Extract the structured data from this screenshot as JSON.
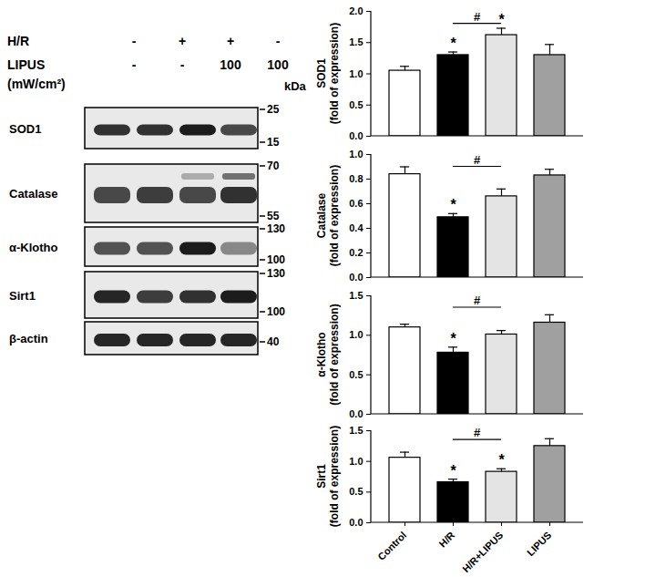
{
  "blot": {
    "conditions": [
      {
        "label": [
          "H/R"
        ],
        "values": [
          "-",
          "+",
          "+",
          "-"
        ]
      },
      {
        "label": [
          "LIPUS",
          "(mW/cm²)"
        ],
        "values": [
          "-",
          "-",
          "100",
          "100"
        ]
      }
    ],
    "marker_unit": "kDa",
    "rows": [
      {
        "label": "SOD1",
        "markers": [
          25,
          15
        ]
      },
      {
        "label": "Catalase",
        "markers": [
          70,
          55
        ]
      },
      {
        "label": "α-Klotho",
        "markers": [
          130,
          100
        ]
      },
      {
        "label": "Sirt1",
        "markers": [
          130,
          100
        ]
      },
      {
        "label": "β-actin",
        "markers": [
          40
        ]
      }
    ]
  },
  "chart_data": [
    {
      "type": "bar",
      "ylabel": [
        "SOD1",
        "(fold of expression)"
      ],
      "categories": [
        "Control",
        "H/R",
        "H/R+LIPUS",
        "LIPUS"
      ],
      "values": [
        1.05,
        1.3,
        1.62,
        1.3
      ],
      "errors": [
        0.07,
        0.05,
        0.11,
        0.17
      ],
      "significance": [
        null,
        "*",
        "*",
        null
      ],
      "comparison": {
        "from": "H/R",
        "to": "H/R+LIPUS",
        "label": "#"
      },
      "colors": [
        "#ffffff",
        "#000000",
        "#e4e4e4",
        "#a0a0a0"
      ],
      "ylim": [
        0,
        2.0
      ],
      "yticks": [
        {
          "value": 0,
          "label": "0.0"
        },
        {
          "value": 0.5,
          "label": "0.5"
        },
        {
          "value": 1,
          "label": "1.0"
        },
        {
          "value": 1.5,
          "label": "1.5"
        },
        {
          "value": 2,
          "label": "2.0"
        }
      ],
      "tick_labels": "y"
    },
    {
      "type": "bar",
      "ylabel": [
        "Catalase",
        "(fold of expression)"
      ],
      "categories": [
        "Control",
        "H/R",
        "H/R+LIPUS",
        "LIPUS"
      ],
      "values": [
        0.84,
        0.49,
        0.66,
        0.83
      ],
      "errors": [
        0.06,
        0.03,
        0.06,
        0.05
      ],
      "significance": [
        null,
        "*",
        null,
        null
      ],
      "comparison": {
        "from": "H/R",
        "to": "H/R+LIPUS",
        "label": "#"
      },
      "colors": [
        "#ffffff",
        "#000000",
        "#e4e4e4",
        "#a0a0a0"
      ],
      "ylim": [
        0,
        1.0
      ],
      "yticks": [
        {
          "value": 0,
          "label": "0.0"
        },
        {
          "value": 0.2,
          "label": "0.2"
        },
        {
          "value": 0.4,
          "label": "0.4"
        },
        {
          "value": 0.6,
          "label": "0.6"
        },
        {
          "value": 0.8,
          "label": "0.8"
        },
        {
          "value": 1,
          "label": "1.0"
        }
      ],
      "tick_labels": "y"
    },
    {
      "type": "bar",
      "ylabel": [
        "α-Klotho",
        "(fold of expression)"
      ],
      "categories": [
        "Control",
        "H/R",
        "H/R+LIPUS",
        "LIPUS"
      ],
      "values": [
        1.1,
        0.78,
        1.01,
        1.16
      ],
      "errors": [
        0.04,
        0.07,
        0.05,
        0.1
      ],
      "significance": [
        null,
        "*",
        null,
        null
      ],
      "comparison": {
        "from": "H/R",
        "to": "H/R+LIPUS",
        "label": "#"
      },
      "colors": [
        "#ffffff",
        "#000000",
        "#e4e4e4",
        "#a0a0a0"
      ],
      "ylim": [
        0,
        1.5
      ],
      "yticks": [
        {
          "value": 0,
          "label": "0.0"
        },
        {
          "value": 0.5,
          "label": "0.5"
        },
        {
          "value": 1,
          "label": "1.0"
        },
        {
          "value": 1.5,
          "label": "1.5"
        }
      ],
      "tick_labels": "y"
    },
    {
      "type": "bar",
      "ylabel": [
        "Sirt1",
        "(fold of expression)"
      ],
      "categories": [
        "Control",
        "H/R",
        "H/R+LIPUS",
        "LIPUS"
      ],
      "values": [
        1.06,
        0.66,
        0.83,
        1.25
      ],
      "errors": [
        0.09,
        0.05,
        0.05,
        0.12
      ],
      "significance": [
        null,
        "*",
        "*",
        null
      ],
      "comparison": {
        "from": "H/R",
        "to": "H/R+LIPUS",
        "label": "#"
      },
      "colors": [
        "#ffffff",
        "#000000",
        "#e4e4e4",
        "#a0a0a0"
      ],
      "ylim": [
        0,
        1.5
      ],
      "yticks": [
        {
          "value": 0,
          "label": "0.0"
        },
        {
          "value": 0.5,
          "label": "0.5"
        },
        {
          "value": 1,
          "label": "1.0"
        },
        {
          "value": 1.5,
          "label": "1.5"
        }
      ]
    }
  ]
}
